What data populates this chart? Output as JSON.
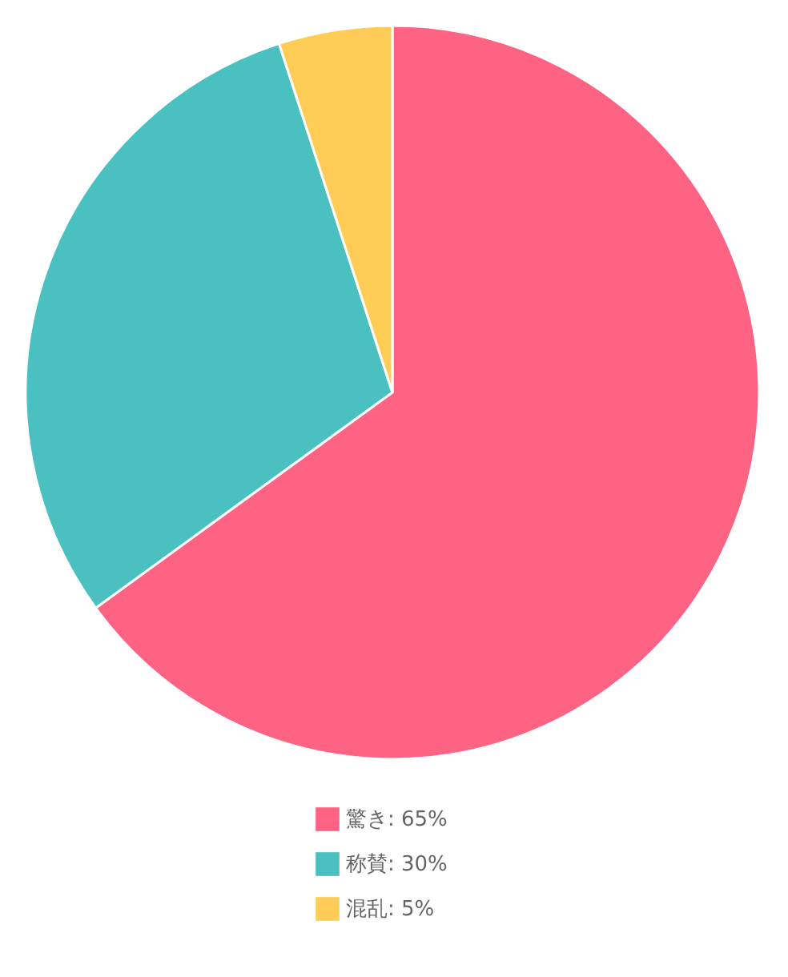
{
  "chart_data": {
    "type": "pie",
    "categories": [
      "驚き: 65%",
      "称賛: 30%",
      "混乱: 5%"
    ],
    "values": [
      65,
      30,
      5
    ],
    "colors": [
      "#ff6384",
      "#4bc0c0",
      "#ffcd56"
    ],
    "legend": "bottom"
  }
}
